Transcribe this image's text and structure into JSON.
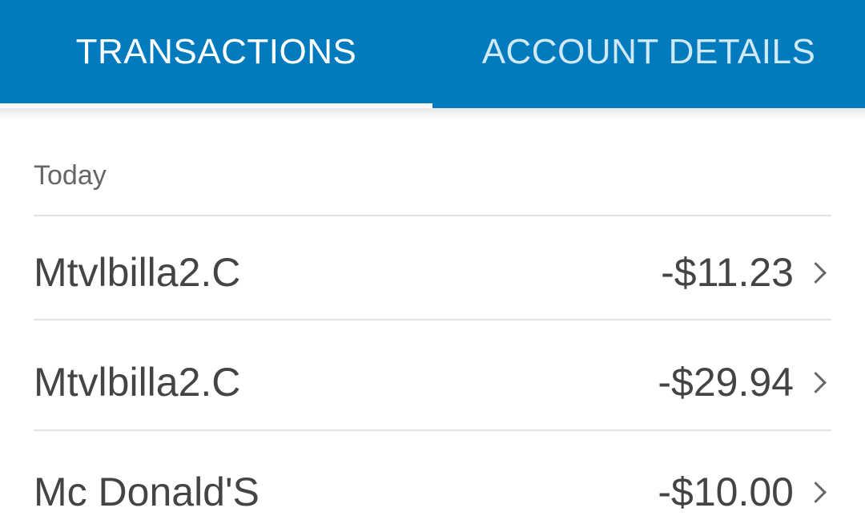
{
  "tabs": [
    {
      "label": "TRANSACTIONS",
      "active": true
    },
    {
      "label": "ACCOUNT DETAILS",
      "active": false
    }
  ],
  "section_label": "Today",
  "transactions": [
    {
      "name": "Mtvlbilla2.C",
      "amount": "-$11.23"
    },
    {
      "name": "Mtvlbilla2.C",
      "amount": "-$29.94"
    },
    {
      "name": "Mc Donald'S",
      "amount": "-$10.00"
    }
  ],
  "colors": {
    "tab_bar": "#017bbd",
    "indicator": "#ffffff"
  }
}
